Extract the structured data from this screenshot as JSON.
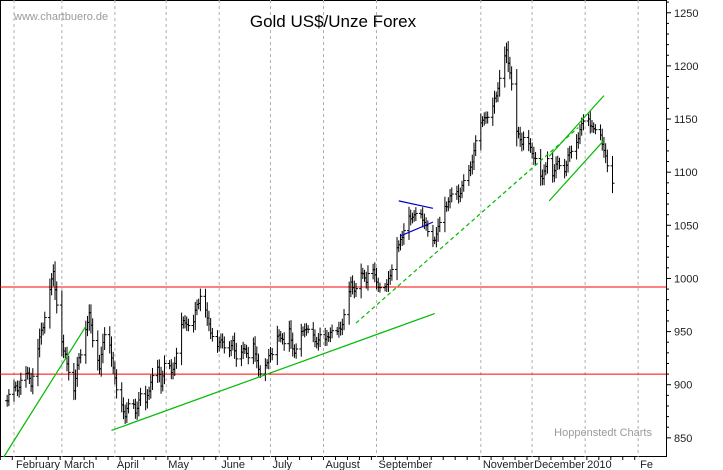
{
  "chart_data": {
    "type": "bar",
    "style": "ohlc-daily",
    "title": "Gold US$/Unze Forex",
    "source_watermark": "www.chartbuero.de",
    "credit": "Hoppenstedt Charts",
    "y_axis_position": "right",
    "ylim": [
      832,
      1262
    ],
    "y_ticks": [
      850,
      900,
      950,
      1000,
      1050,
      1100,
      1150,
      1200,
      1250
    ],
    "y_tick_labels": [
      "850",
      "900",
      "950",
      "1000",
      "1050",
      "1100",
      "1150",
      "1200",
      "1250"
    ],
    "x_range_days": [
      -8,
      367
    ],
    "x_axis_note": "day 0 = 2009-02-01, daily bars",
    "months": [
      {
        "label": "February",
        "start_day": 0
      },
      {
        "label": "March",
        "start_day": 28
      },
      {
        "label": "April",
        "start_day": 59
      },
      {
        "label": "May",
        "start_day": 89
      },
      {
        "label": "June",
        "start_day": 120
      },
      {
        "label": "July",
        "start_day": 150
      },
      {
        "label": "August",
        "start_day": 181
      },
      {
        "label": "September",
        "start_day": 212
      },
      {
        "label": "November",
        "start_day": 273
      },
      {
        "label": "December",
        "start_day": 303
      },
      {
        "label": "2010",
        "start_day": 334
      },
      {
        "label": "Fe",
        "start_day": 365
      }
    ],
    "series": [
      {
        "name": "",
        "keyframes": [
          [
            -4,
            885
          ],
          [
            -1,
            900
          ],
          [
            2,
            893
          ],
          [
            6,
            915
          ],
          [
            10,
            900
          ],
          [
            14,
            935
          ],
          [
            17,
            955
          ],
          [
            20,
            985
          ],
          [
            23,
            1003
          ],
          [
            26,
            965
          ],
          [
            29,
            930
          ],
          [
            32,
            915
          ],
          [
            35,
            895
          ],
          [
            38,
            925
          ],
          [
            41,
            945
          ],
          [
            44,
            965
          ],
          [
            47,
            935
          ],
          [
            50,
            915
          ],
          [
            53,
            950
          ],
          [
            56,
            935
          ],
          [
            59,
            905
          ],
          [
            62,
            882
          ],
          [
            65,
            870
          ],
          [
            68,
            890
          ],
          [
            71,
            872
          ],
          [
            74,
            892
          ],
          [
            77,
            880
          ],
          [
            80,
            903
          ],
          [
            83,
            920
          ],
          [
            86,
            900
          ],
          [
            89,
            930
          ],
          [
            92,
            908
          ],
          [
            95,
            930
          ],
          [
            98,
            955
          ],
          [
            101,
            960
          ],
          [
            104,
            950
          ],
          [
            107,
            975
          ],
          [
            110,
            990
          ],
          [
            113,
            960
          ],
          [
            116,
            948
          ],
          [
            119,
            936
          ],
          [
            122,
            943
          ],
          [
            125,
            928
          ],
          [
            128,
            940
          ],
          [
            131,
            922
          ],
          [
            134,
            934
          ],
          [
            137,
            929
          ],
          [
            140,
            937
          ],
          [
            143,
            915
          ],
          [
            146,
            910
          ],
          [
            149,
            928
          ],
          [
            152,
            932
          ],
          [
            155,
            948
          ],
          [
            158,
            940
          ],
          [
            161,
            949
          ],
          [
            164,
            930
          ],
          [
            167,
            942
          ],
          [
            170,
            955
          ],
          [
            173,
            950
          ],
          [
            176,
            940
          ],
          [
            179,
            946
          ],
          [
            182,
            940
          ],
          [
            185,
            952
          ],
          [
            188,
            945
          ],
          [
            191,
            955
          ],
          [
            194,
            970
          ],
          [
            197,
            995
          ],
          [
            200,
            990
          ],
          [
            203,
            1005
          ],
          [
            206,
            1000
          ],
          [
            209,
            1015
          ],
          [
            212,
            997
          ],
          [
            215,
            990
          ],
          [
            218,
            995
          ],
          [
            221,
            1010
          ],
          [
            224,
            1030
          ],
          [
            227,
            1040
          ],
          [
            230,
            1060
          ],
          [
            233,
            1058
          ],
          [
            236,
            1065
          ],
          [
            239,
            1058
          ],
          [
            242,
            1045
          ],
          [
            245,
            1035
          ],
          [
            248,
            1048
          ],
          [
            251,
            1062
          ],
          [
            254,
            1075
          ],
          [
            257,
            1080
          ],
          [
            260,
            1080
          ],
          [
            263,
            1090
          ],
          [
            266,
            1100
          ],
          [
            269,
            1120
          ],
          [
            272,
            1140
          ],
          [
            275,
            1155
          ],
          [
            278,
            1145
          ],
          [
            281,
            1170
          ],
          [
            284,
            1185
          ],
          [
            286,
            1205
          ],
          [
            288,
            1215
          ],
          [
            290,
            1195
          ],
          [
            292,
            1165
          ],
          [
            294,
            1140
          ],
          [
            297,
            1128
          ],
          [
            300,
            1135
          ],
          [
            303,
            1118
          ],
          [
            306,
            1108
          ],
          [
            309,
            1095
          ],
          [
            312,
            1112
          ],
          [
            315,
            1100
          ],
          [
            318,
            1110
          ],
          [
            321,
            1098
          ],
          [
            324,
            1115
          ],
          [
            327,
            1122
          ],
          [
            330,
            1135
          ],
          [
            333,
            1148
          ],
          [
            336,
            1152
          ],
          [
            339,
            1138
          ],
          [
            342,
            1142
          ],
          [
            344,
            1130
          ],
          [
            346,
            1112
          ],
          [
            348,
            1097
          ],
          [
            350,
            1090
          ]
        ]
      }
    ],
    "horizontal_lines": [
      {
        "y": 992,
        "color": "#ff0000"
      },
      {
        "y": 910,
        "color": "#ff0000"
      }
    ],
    "trendlines": [
      {
        "from": [
          -6,
          832
        ],
        "to": [
          42,
          955
        ],
        "color": "#00bb00",
        "style": "solid"
      },
      {
        "from": [
          57,
          857
        ],
        "to": [
          246,
          967
        ],
        "color": "#00bb00",
        "style": "solid"
      },
      {
        "from": [
          200,
          958
        ],
        "to": [
          330,
          1142
        ],
        "color": "#00bb00",
        "style": "dashed"
      },
      {
        "from": [
          313,
          1073
        ],
        "to": [
          345,
          1130
        ],
        "color": "#00bb00",
        "style": "solid"
      },
      {
        "from": [
          313,
          1115
        ],
        "to": [
          345,
          1172
        ],
        "color": "#00bb00",
        "style": "solid"
      },
      {
        "from": [
          225,
          1073
        ],
        "to": [
          245,
          1066
        ],
        "color": "#0000cc",
        "style": "solid"
      },
      {
        "from": [
          226,
          1040
        ],
        "to": [
          245,
          1053
        ],
        "color": "#0000cc",
        "style": "solid"
      }
    ],
    "grid": "vertical-dashed-at-month-starts",
    "legend": "none"
  },
  "colors": {
    "background": "#ffffff",
    "bars": "#000000",
    "grid": "#b0b0b0",
    "support_resistance": "#ff0000",
    "trend": "#00bb00",
    "triangle": "#0000cc"
  }
}
